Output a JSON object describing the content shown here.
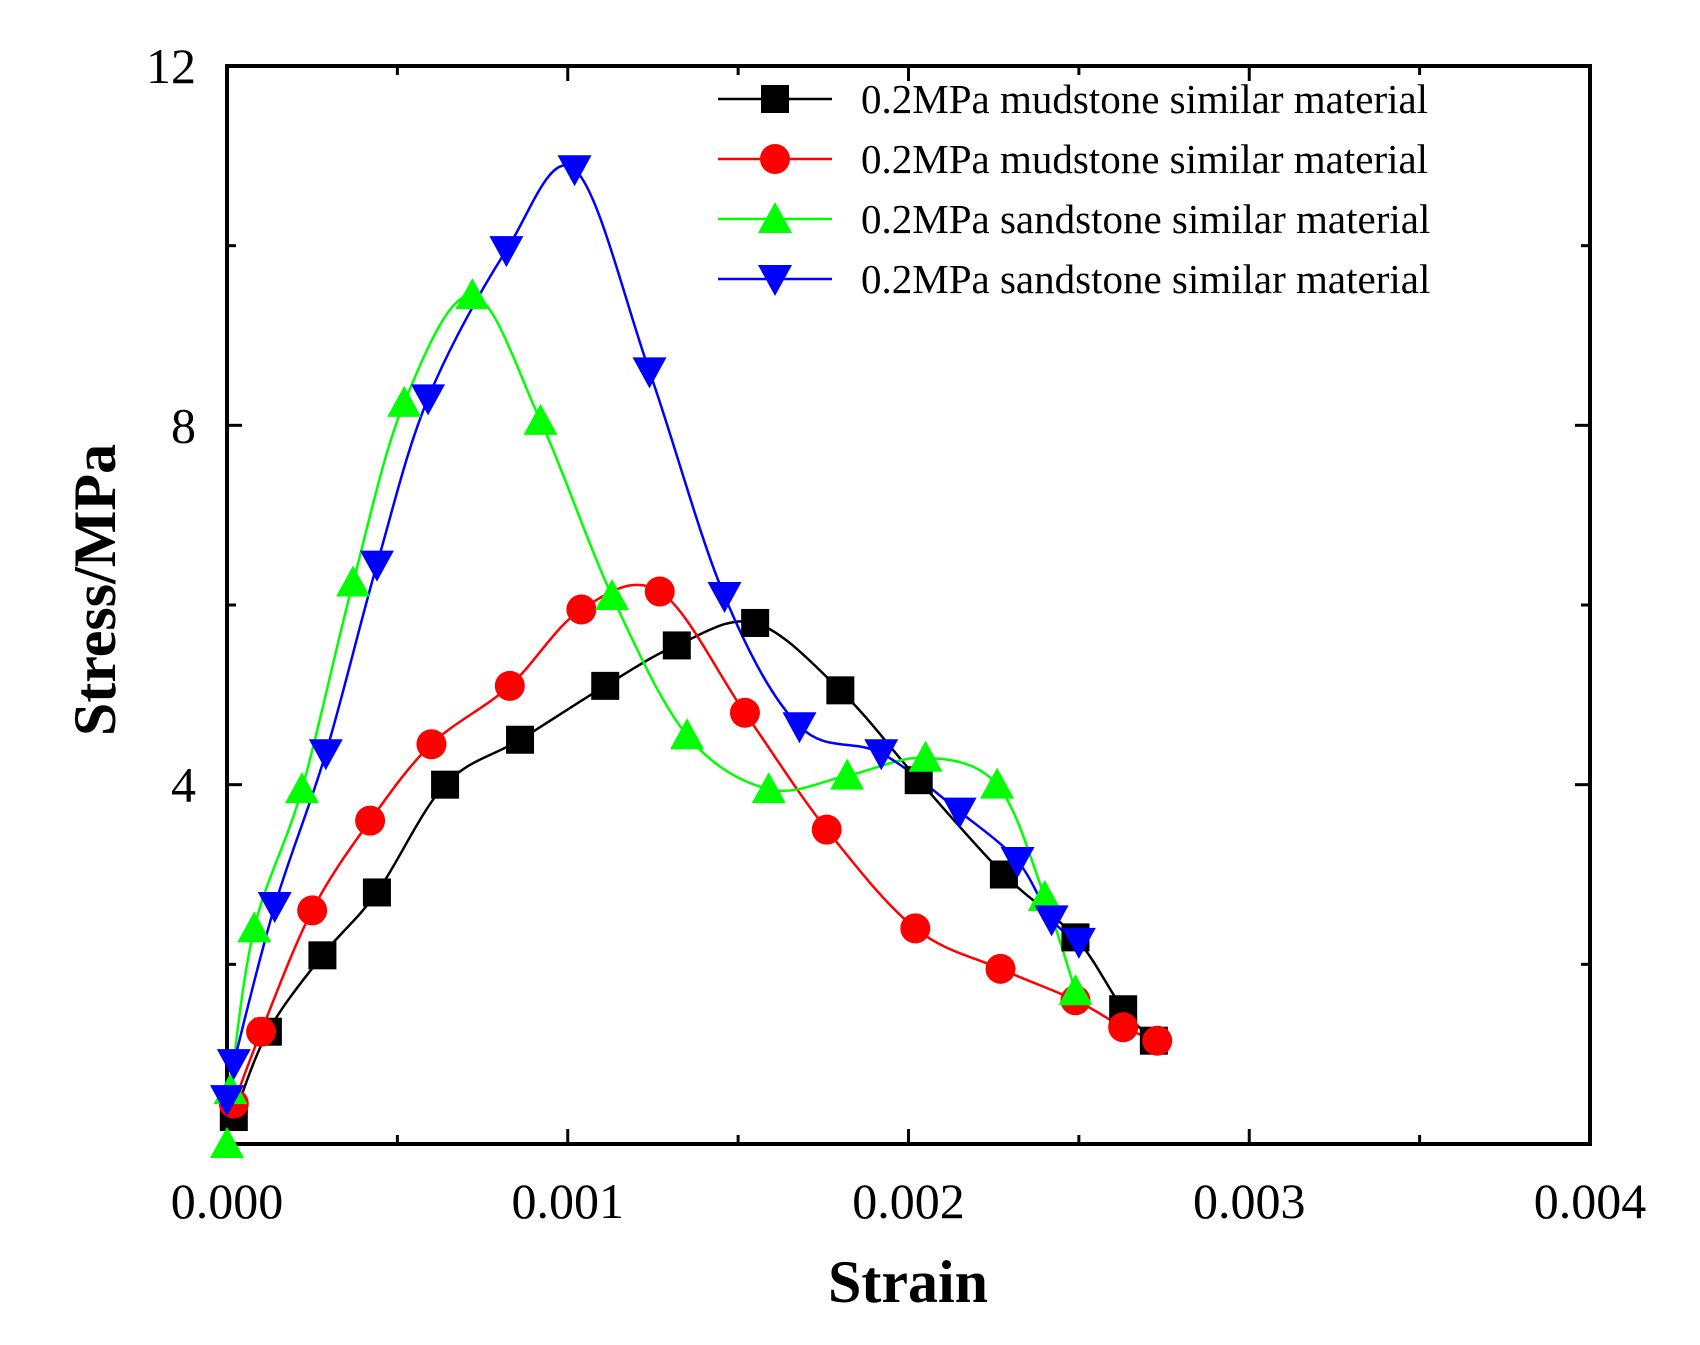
{
  "chart_data": {
    "type": "line",
    "xlabel": "Strain",
    "ylabel": "Stress/MPa",
    "xlim": [
      0,
      0.004
    ],
    "ylim": [
      0,
      12
    ],
    "x_ticks": [
      0,
      0.001,
      0.002,
      0.003,
      0.004
    ],
    "x_tick_labels": [
      "0.000",
      "0.001",
      "0.002",
      "0.003",
      "0.004"
    ],
    "x_minor_ticks": [
      0.0005,
      0.0015,
      0.0025,
      0.0035
    ],
    "y_ticks": [
      4,
      8,
      12
    ],
    "y_tick_labels": [
      "4",
      "8",
      "12"
    ],
    "y_minor_ticks": [
      2,
      6,
      10
    ],
    "legend_position": "top-right",
    "series": [
      {
        "name": "0.2MPa mudstone similar material",
        "color": "#000000",
        "marker": "square",
        "x": [
          2e-05,
          0.00012,
          0.00028,
          0.00044,
          0.00064,
          0.00086,
          0.00111,
          0.00132,
          0.00155,
          0.0018,
          0.00203,
          0.00228,
          0.00249,
          0.00263,
          0.00272
        ],
        "y": [
          0.3,
          1.25,
          2.1,
          2.8,
          4.0,
          4.5,
          5.1,
          5.55,
          5.8,
          5.05,
          4.05,
          3.0,
          2.3,
          1.5,
          1.15
        ]
      },
      {
        "name": "0.2MPa mudstone similar material",
        "color": "#ff0000",
        "marker": "circle",
        "x": [
          2e-05,
          0.0001,
          0.00025,
          0.00042,
          0.0006,
          0.00083,
          0.00104,
          0.00127,
          0.00152,
          0.00176,
          0.00202,
          0.00227,
          0.00249,
          0.00263,
          0.00273
        ],
        "y": [
          0.45,
          1.25,
          2.6,
          3.6,
          4.45,
          5.1,
          5.95,
          6.15,
          4.8,
          3.5,
          2.4,
          1.95,
          1.6,
          1.3,
          1.15
        ]
      },
      {
        "name": "0.2MPa sandstone similar material",
        "color": "#00ff00",
        "marker": "triangle-up",
        "x": [
          0.0,
          1e-05,
          8e-05,
          0.00022,
          0.00037,
          0.00052,
          0.00072,
          0.00092,
          0.00113,
          0.00135,
          0.00159,
          0.00182,
          0.00205,
          0.00226,
          0.0024,
          0.00249
        ],
        "y": [
          0.0,
          0.6,
          2.4,
          3.95,
          6.25,
          8.25,
          9.45,
          8.05,
          6.1,
          4.55,
          3.95,
          4.1,
          4.3,
          4.0,
          2.75,
          1.7
        ]
      },
      {
        "name": "0.2MPa sandstone similar material",
        "color": "#0000ff",
        "marker": "triangle-down",
        "x": [
          0.0,
          2e-05,
          0.00014,
          0.00029,
          0.00044,
          0.00059,
          0.00082,
          0.00102,
          0.00124,
          0.00146,
          0.00168,
          0.00192,
          0.00215,
          0.00232,
          0.00242,
          0.0025
        ],
        "y": [
          0.5,
          0.9,
          2.65,
          4.35,
          6.45,
          8.3,
          9.95,
          10.85,
          8.6,
          6.1,
          4.65,
          4.35,
          3.7,
          3.15,
          2.5,
          2.25
        ]
      }
    ]
  }
}
